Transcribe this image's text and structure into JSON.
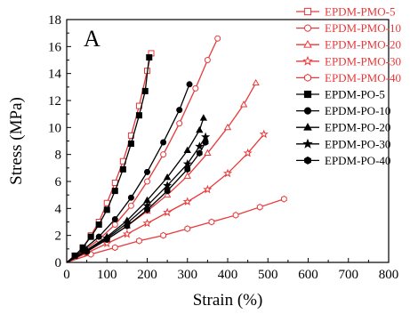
{
  "colors": {
    "pmo": "#e8393a",
    "po": "#000000"
  },
  "chart_data": {
    "type": "line",
    "panel_label": "A",
    "xlabel": "Strain (%)",
    "ylabel": "Stress (MPa)",
    "xlim": [
      0,
      800
    ],
    "ylim": [
      0,
      18
    ],
    "xticks": [
      0,
      100,
      200,
      300,
      400,
      500,
      600,
      700,
      800
    ],
    "yticks": [
      0,
      2,
      4,
      6,
      8,
      10,
      12,
      14,
      16,
      18
    ],
    "legend_position": "top-right",
    "series": [
      {
        "name": "EPDM-PMO-5",
        "group": "pmo",
        "marker": "square",
        "filled": false,
        "x": [
          0,
          20,
          40,
          60,
          80,
          100,
          120,
          140,
          160,
          180,
          200,
          210
        ],
        "y": [
          0,
          0.5,
          1.1,
          2.0,
          3.0,
          4.4,
          5.9,
          7.5,
          9.4,
          11.6,
          14.2,
          15.5
        ]
      },
      {
        "name": "EPDM-PMO-10",
        "group": "pmo",
        "marker": "circle",
        "filled": false,
        "x": [
          0,
          40,
          80,
          120,
          160,
          200,
          240,
          280,
          320,
          350,
          375
        ],
        "y": [
          0,
          0.8,
          1.7,
          2.8,
          4.2,
          6.0,
          8.0,
          10.3,
          12.9,
          15.0,
          16.6
        ]
      },
      {
        "name": "EPDM-PMO-20",
        "group": "pmo",
        "marker": "triangle",
        "filled": false,
        "x": [
          0,
          50,
          100,
          150,
          200,
          250,
          300,
          350,
          400,
          440,
          470
        ],
        "y": [
          0,
          0.8,
          1.7,
          2.7,
          3.8,
          5.0,
          6.4,
          8.1,
          10.0,
          11.7,
          13.3
        ]
      },
      {
        "name": "EPDM-PMO-30",
        "group": "pmo",
        "marker": "star",
        "filled": false,
        "x": [
          0,
          50,
          100,
          150,
          200,
          250,
          300,
          350,
          400,
          450,
          490
        ],
        "y": [
          0,
          0.7,
          1.4,
          2.1,
          2.9,
          3.7,
          4.5,
          5.4,
          6.6,
          8.1,
          9.5
        ]
      },
      {
        "name": "EPDM-PMO-40",
        "group": "pmo",
        "marker": "hexagon",
        "filled": false,
        "x": [
          0,
          60,
          120,
          180,
          240,
          300,
          360,
          420,
          480,
          540
        ],
        "y": [
          0,
          0.6,
          1.1,
          1.6,
          2.0,
          2.5,
          3.0,
          3.5,
          4.1,
          4.7
        ]
      },
      {
        "name": "EPDM-PO-5",
        "group": "po",
        "marker": "square",
        "filled": true,
        "x": [
          0,
          20,
          40,
          60,
          80,
          100,
          120,
          140,
          160,
          180,
          195,
          205
        ],
        "y": [
          0,
          0.5,
          1.1,
          1.9,
          2.8,
          3.9,
          5.3,
          6.9,
          8.8,
          10.9,
          12.7,
          15.2
        ]
      },
      {
        "name": "EPDM-PO-10",
        "group": "po",
        "marker": "circle",
        "filled": true,
        "x": [
          0,
          40,
          80,
          120,
          160,
          200,
          240,
          280,
          305
        ],
        "y": [
          0,
          0.9,
          1.9,
          3.2,
          4.8,
          6.7,
          8.9,
          11.3,
          13.2
        ]
      },
      {
        "name": "EPDM-PO-20",
        "group": "po",
        "marker": "triangle",
        "filled": true,
        "x": [
          0,
          50,
          100,
          150,
          200,
          250,
          300,
          330,
          340
        ],
        "y": [
          0,
          0.9,
          1.9,
          3.1,
          4.6,
          6.3,
          8.3,
          9.8,
          10.7
        ]
      },
      {
        "name": "EPDM-PO-30",
        "group": "po",
        "marker": "star",
        "filled": true,
        "x": [
          0,
          50,
          100,
          150,
          200,
          250,
          300,
          330,
          345
        ],
        "y": [
          0,
          0.9,
          1.8,
          2.9,
          4.2,
          5.7,
          7.3,
          8.6,
          9.3
        ]
      },
      {
        "name": "EPDM-PO-40",
        "group": "po",
        "marker": "hexagon",
        "filled": true,
        "x": [
          0,
          50,
          100,
          150,
          200,
          250,
          300,
          330,
          345
        ],
        "y": [
          0,
          0.8,
          1.7,
          2.7,
          3.9,
          5.3,
          6.9,
          8.1,
          8.9
        ]
      }
    ]
  }
}
